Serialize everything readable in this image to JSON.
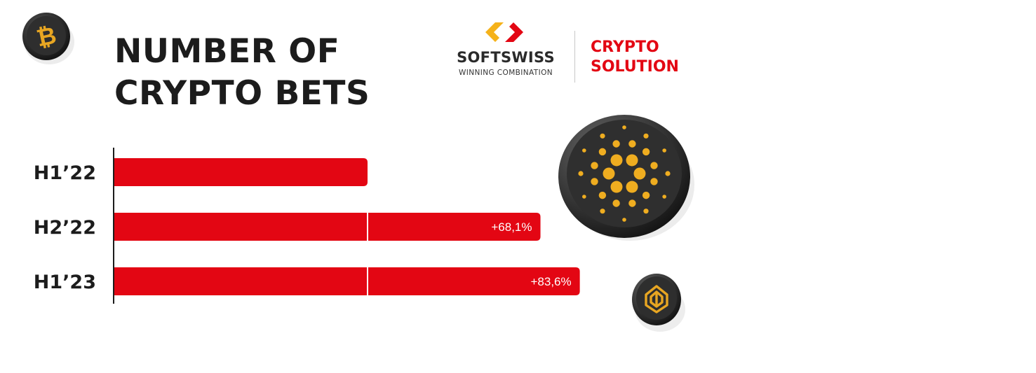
{
  "title": {
    "line1": "NUMBER OF",
    "line2": "CRYPTO BETS"
  },
  "brand": {
    "name": "SOFTSWISS",
    "tagline": "WINNING COMBINATION",
    "product_line1": "CRYPTO",
    "product_line2": "SOLUTION"
  },
  "icons": [
    "bitcoin-coin-icon",
    "cardano-coin-icon",
    "bnb-coin-icon",
    "softswiss-logo-icon"
  ],
  "colors": {
    "bar": "#e30613",
    "text": "#1c1c1c",
    "bar_label": "#ffffff",
    "brand_red": "#e30613",
    "brand_yellow": "#f5b21a",
    "coin_dark": "#2b2b2b",
    "coin_gold": "#e8a622"
  },
  "chart_data": {
    "type": "bar",
    "orientation": "horizontal",
    "title": "NUMBER OF CRYPTO BETS",
    "categories": [
      "H1'22",
      "H2'22",
      "H1'23"
    ],
    "category_labels": [
      "H1’22",
      "H2’22",
      "H1’23"
    ],
    "relative_values": [
      1.0,
      1.681,
      1.836
    ],
    "growth_labels": [
      "",
      "+68,1%",
      "+83,6%"
    ],
    "baseline_marker": 1.0,
    "x_axis_visible": false,
    "grid": false,
    "legend": "none"
  }
}
